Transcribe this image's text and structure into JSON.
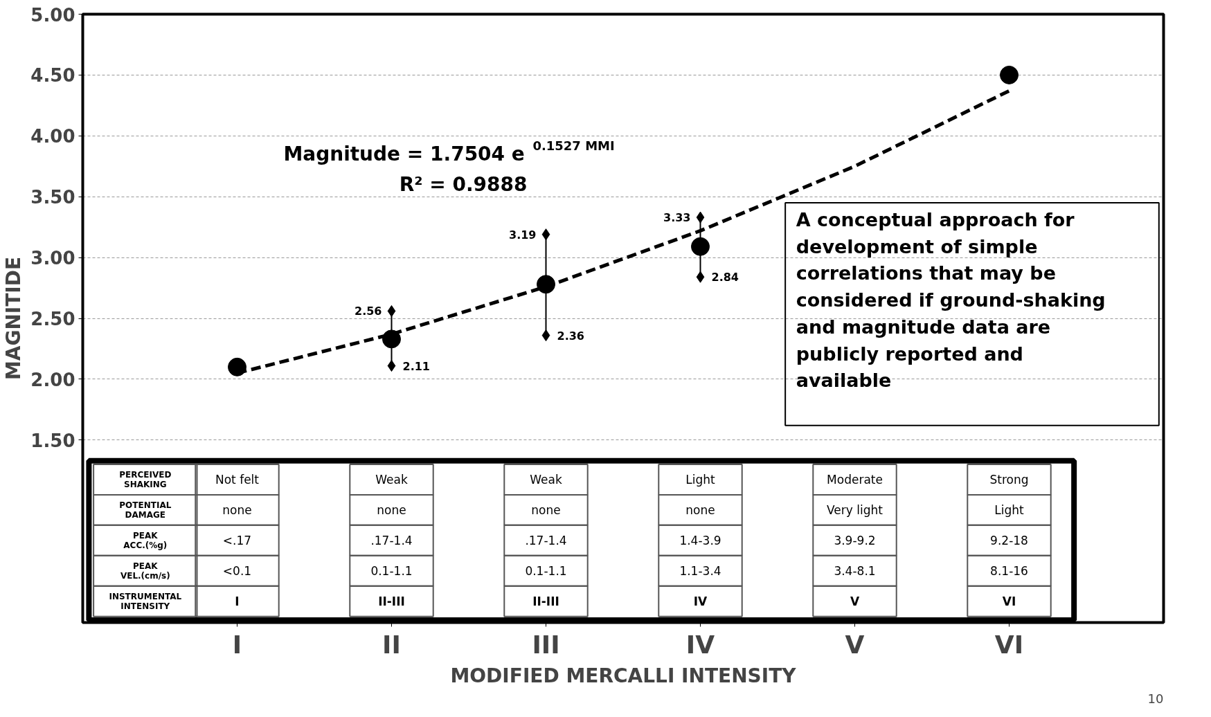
{
  "chart_data": [
    {
      "type": "scatter",
      "xlabel": "MODIFIED MERCALLI INTENSITY",
      "ylabel": "MAGNITIDE",
      "categories": [
        "I",
        "II",
        "III",
        "IV",
        "V",
        "VI"
      ],
      "series": [
        {
          "color": "#000000",
          "marker": "circle",
          "values": [
            2.1,
            2.33,
            2.78,
            3.09,
            null,
            4.5
          ]
        },
        {
          "color": "#000000",
          "marker": "diamond",
          "data_labels": true,
          "values": [
            null,
            2.56,
            3.19,
            3.33,
            null,
            null
          ]
        },
        {
          "color": "#000000",
          "marker": "diamond",
          "data_labels": true,
          "values": [
            null,
            2.11,
            2.36,
            2.84,
            null,
            null
          ]
        },
        {
          "type": "line",
          "line_style": "dashed",
          "color": "#000000",
          "values": [
            2.05,
            2.37,
            2.76,
            3.22,
            3.75,
            4.37
          ]
        }
      ],
      "ylim": [
        0,
        5
      ],
      "yticks": [
        {
          "value": 1.5,
          "label": "1.50"
        },
        {
          "value": 2,
          "label": "2.00"
        },
        {
          "value": 2.5,
          "label": "2.50"
        },
        {
          "value": 3,
          "label": "3.00"
        },
        {
          "value": 3.5,
          "label": "3.50"
        },
        {
          "value": 4,
          "label": "4.00"
        },
        {
          "value": 4.5,
          "label": "4.50"
        },
        {
          "value": 5,
          "label": "5.00"
        }
      ],
      "grid": "y",
      "annotations": [
        "Magnitude = 1.7504 e$^{0.1527 MMI}$",
        "R² = 0.9888",
        "A conceptual approach for development of simple correlations that may be considered if ground-shaking and magnitude data are publicly reported and available",
        "10"
      ]
    },
    {
      "type": "other",
      "annotations": [
        "PERCEIVED SHAKING",
        "Not felt",
        "Weak",
        "Weak",
        "Light",
        "Moderate",
        "Strong",
        "POTENTIAL DAMAGE",
        "none",
        "none",
        "none",
        "none",
        "Very light",
        "Light",
        "PEAK ACC.(%g)",
        "<.17",
        ".17-1.4",
        ".17-1.4",
        "1.4-3.9",
        "3.9-9.2",
        "9.2-18",
        "PEAK VEL.(cm/s)",
        "<0.1",
        "0.1-1.1",
        "0.1-1.1",
        "1.1-3.4",
        "3.4-8.1",
        "8.1-16",
        "INSTRUMENTAL INTENSITY",
        "I",
        "II-III",
        "II-III",
        "IV",
        "V",
        "VI"
      ]
    }
  ]
}
